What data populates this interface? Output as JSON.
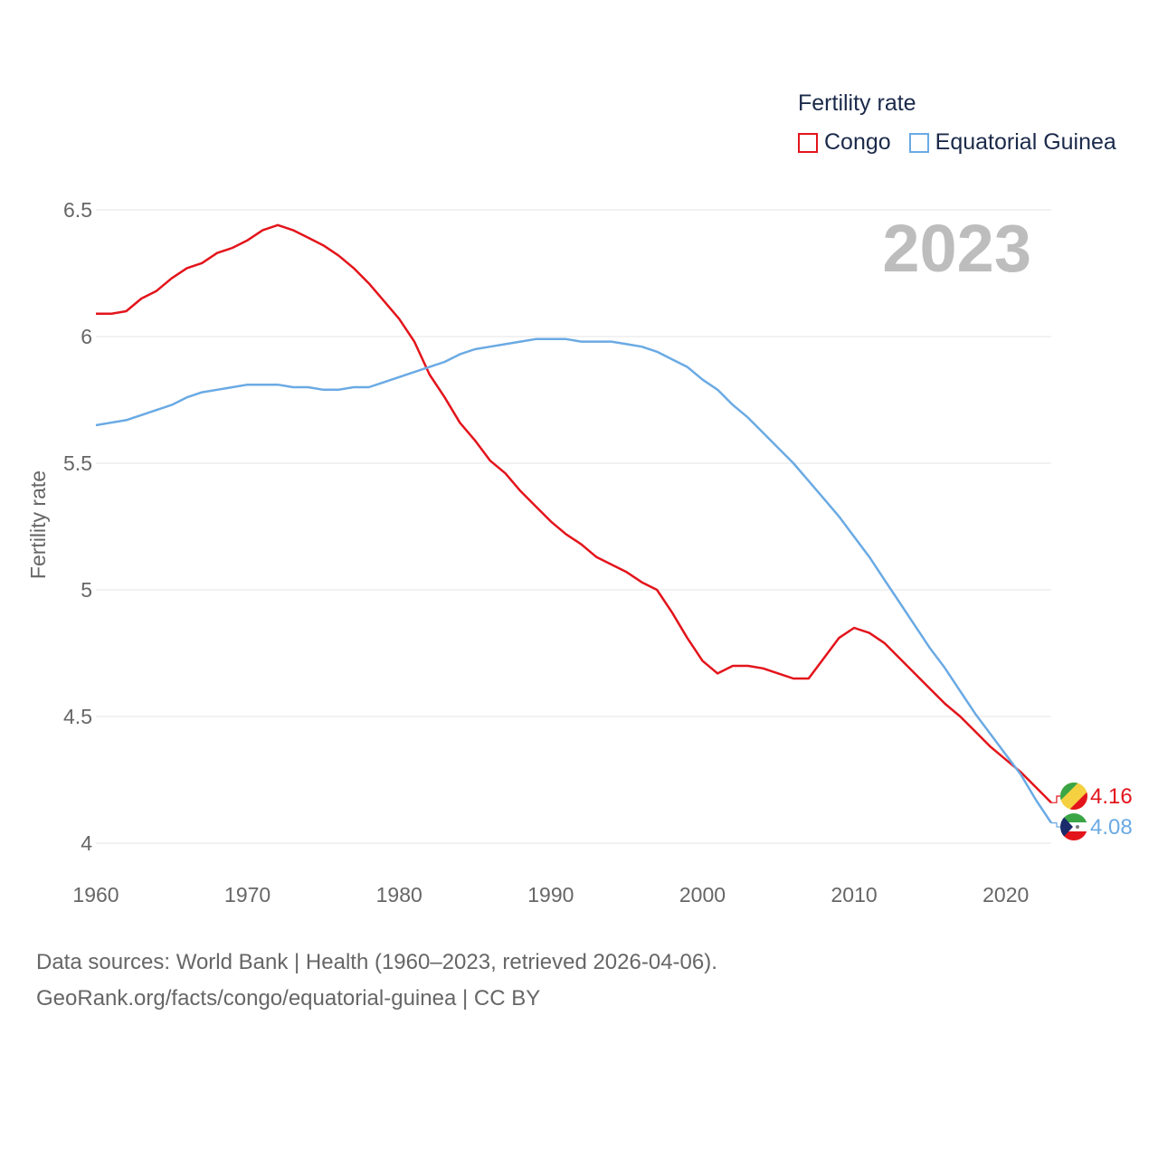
{
  "chart_data": {
    "type": "line",
    "title": "Fertility rate",
    "xlabel": "",
    "ylabel": "Fertility rate",
    "year_label": "2023",
    "xlim": [
      1960,
      2023
    ],
    "ylim": [
      4,
      6.5
    ],
    "x_ticks": [
      1960,
      1970,
      1980,
      1990,
      2000,
      2010,
      2020
    ],
    "y_ticks": [
      4,
      4.5,
      5,
      5.5,
      6,
      6.5
    ],
    "y_tick_labels": [
      "4",
      "4.5",
      "5",
      "5.5",
      "6",
      "6.5"
    ],
    "legend_position": "top-right",
    "grid": true,
    "x": [
      1960,
      1961,
      1962,
      1963,
      1964,
      1965,
      1966,
      1967,
      1968,
      1969,
      1970,
      1971,
      1972,
      1973,
      1974,
      1975,
      1976,
      1977,
      1978,
      1979,
      1980,
      1981,
      1982,
      1983,
      1984,
      1985,
      1986,
      1987,
      1988,
      1989,
      1990,
      1991,
      1992,
      1993,
      1994,
      1995,
      1996,
      1997,
      1998,
      1999,
      2000,
      2001,
      2002,
      2003,
      2004,
      2005,
      2006,
      2007,
      2008,
      2009,
      2010,
      2011,
      2012,
      2013,
      2014,
      2015,
      2016,
      2017,
      2018,
      2019,
      2020,
      2021,
      2022,
      2023
    ],
    "series": [
      {
        "name": "Congo",
        "color": "#e3141b",
        "end_label": "4.16",
        "values": [
          6.09,
          6.09,
          6.1,
          6.15,
          6.18,
          6.23,
          6.27,
          6.29,
          6.33,
          6.35,
          6.38,
          6.42,
          6.44,
          6.42,
          6.39,
          6.36,
          6.32,
          6.27,
          6.21,
          6.14,
          6.07,
          5.98,
          5.85,
          5.76,
          5.66,
          5.59,
          5.51,
          5.46,
          5.39,
          5.33,
          5.27,
          5.22,
          5.18,
          5.13,
          5.1,
          5.07,
          5.03,
          5.0,
          4.91,
          4.81,
          4.72,
          4.67,
          4.7,
          4.7,
          4.69,
          4.67,
          4.65,
          4.65,
          4.73,
          4.81,
          4.85,
          4.83,
          4.79,
          4.73,
          4.67,
          4.61,
          4.55,
          4.5,
          4.44,
          4.38,
          4.33,
          4.28,
          4.22,
          4.16
        ]
      },
      {
        "name": "Equatorial Guinea",
        "color": "#6aaae4",
        "end_label": "4.08",
        "values": [
          5.65,
          5.66,
          5.67,
          5.69,
          5.71,
          5.73,
          5.76,
          5.78,
          5.79,
          5.8,
          5.81,
          5.81,
          5.81,
          5.8,
          5.8,
          5.79,
          5.79,
          5.8,
          5.8,
          5.82,
          5.84,
          5.86,
          5.88,
          5.9,
          5.93,
          5.95,
          5.96,
          5.97,
          5.98,
          5.99,
          5.99,
          5.99,
          5.98,
          5.98,
          5.98,
          5.97,
          5.96,
          5.94,
          5.91,
          5.88,
          5.83,
          5.79,
          5.73,
          5.68,
          5.62,
          5.56,
          5.5,
          5.43,
          5.36,
          5.29,
          5.21,
          5.13,
          5.04,
          4.95,
          4.86,
          4.77,
          4.69,
          4.6,
          4.51,
          4.43,
          4.35,
          4.27,
          4.17,
          4.08
        ]
      }
    ]
  },
  "footer": {
    "sources_line1": "Data sources: World Bank | Health (1960–2023, retrieved 2026-04-06).",
    "sources_line2": "GeoRank.org/facts/congo/equatorial-guinea | CC BY"
  },
  "flags": {
    "congo": {
      "green": "#3aa545",
      "yellow": "#f5d142",
      "red": "#e3141b"
    },
    "equatorial_guinea": {
      "green": "#3aa545",
      "white": "#ffffff",
      "red": "#e3141b",
      "blue": "#1b2a6a"
    }
  }
}
